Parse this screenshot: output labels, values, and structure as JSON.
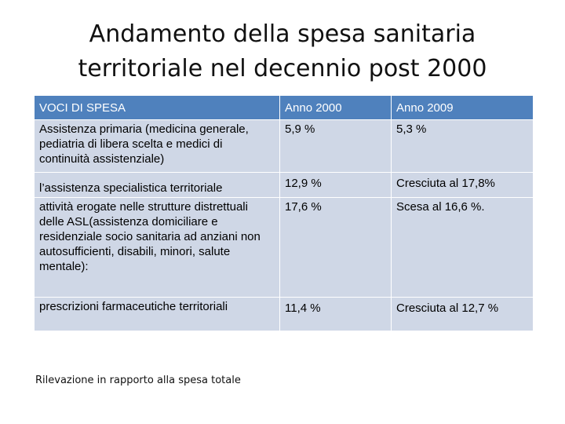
{
  "title": {
    "line1": "Andamento della spesa sanitaria",
    "line2": "territoriale nel decennio post 2000"
  },
  "table": {
    "headers": [
      "VOCI DI SPESA",
      "Anno 2000",
      "Anno 2009"
    ],
    "rows": [
      [
        "Assistenza primaria (medicina generale, pediatria di libera scelta e medici di continuità assistenziale)",
        "5,9 %",
        "5,3 %"
      ],
      [
        "l’assistenza specialistica territoriale",
        "12,9 %",
        "Cresciuta al 17,8%"
      ],
      [
        "attività erogate nelle strutture distrettuali delle ASL(assistenza domiciliare e residenziale socio sanitaria ad anziani non autosufficienti, disabili, minori, salute mentale):",
        "17,6 %",
        "Scesa al 16,6 %."
      ],
      [
        "prescrizioni farmaceutiche territoriali",
        "11,4 %",
        "Cresciuta al 12,7 %"
      ]
    ]
  },
  "note": "Rilevazione in rapporto alla spesa totale"
}
